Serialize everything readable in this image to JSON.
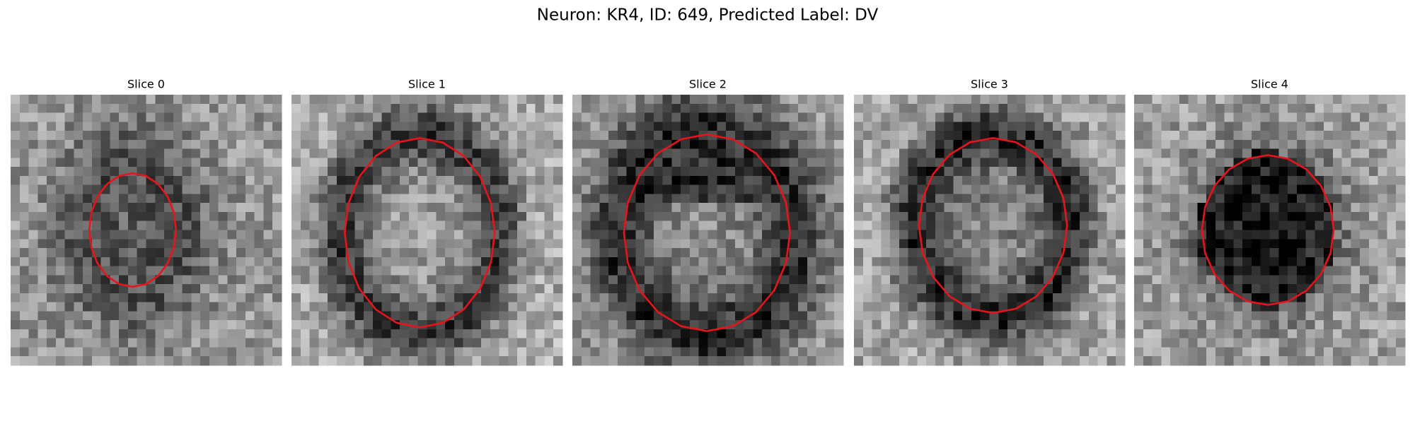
{
  "header": {
    "title": "Neuron: KR4, ID: 649, Predicted Label: DV"
  },
  "panels": [
    {
      "title": "Slice 0"
    },
    {
      "title": "Slice 1"
    },
    {
      "title": "Slice 2"
    },
    {
      "title": "Slice 3"
    },
    {
      "title": "Slice 4"
    }
  ]
}
